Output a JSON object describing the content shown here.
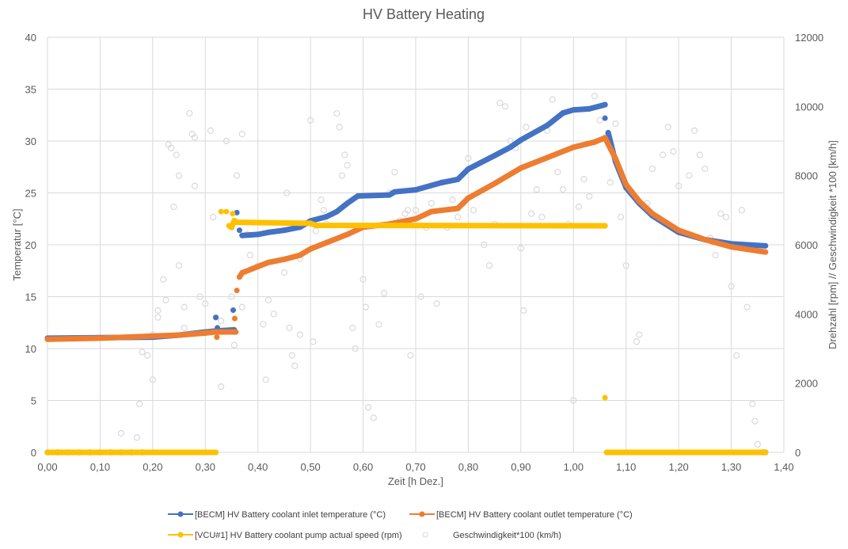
{
  "chart_data": {
    "type": "scatter",
    "title": "HV Battery Heating",
    "xlabel": "Zeit [h Dez.]",
    "ylabel": "Temperatur [°C]",
    "y2label": "Drehzahl [rpm] // Geschwindigkeit *100 [km/h]",
    "xlim": [
      0,
      1.4
    ],
    "ylim": [
      0,
      40
    ],
    "y2lim": [
      0,
      12000
    ],
    "grid": true,
    "legend_position": "bottom",
    "x_ticks": [
      "0,00",
      "0,10",
      "0,20",
      "0,30",
      "0,40",
      "0,50",
      "0,60",
      "0,70",
      "0,80",
      "0,90",
      "1,00",
      "1,10",
      "1,20",
      "1,30",
      "1,40"
    ],
    "y_ticks": [
      "0",
      "5",
      "10",
      "15",
      "20",
      "25",
      "30",
      "35",
      "40"
    ],
    "y2_ticks": [
      "0",
      "2000",
      "4000",
      "6000",
      "8000",
      "10000",
      "12000"
    ],
    "series": [
      {
        "name": "[BECM]  HV Battery coolant inlet temperature (°C)",
        "color": "#4472C4",
        "axis": "left",
        "style": "line-marker",
        "segments": [
          [
            [
              0,
              11.0
            ],
            [
              0.1,
              11.05
            ],
            [
              0.2,
              11.1
            ],
            [
              0.25,
              11.3
            ],
            [
              0.3,
              11.6
            ],
            [
              0.32,
              11.7
            ],
            [
              0.355,
              11.8
            ]
          ],
          [
            [
              0.37,
              20.9
            ],
            [
              0.4,
              21.0
            ],
            [
              0.42,
              21.2
            ],
            [
              0.45,
              21.4
            ],
            [
              0.48,
              21.7
            ],
            [
              0.5,
              22.3
            ],
            [
              0.53,
              22.7
            ],
            [
              0.55,
              23.2
            ],
            [
              0.57,
              24.0
            ],
            [
              0.59,
              24.7
            ],
            [
              0.65,
              24.8
            ],
            [
              0.66,
              25.1
            ],
            [
              0.7,
              25.3
            ],
            [
              0.75,
              26.0
            ],
            [
              0.78,
              26.3
            ],
            [
              0.8,
              27.3
            ],
            [
              0.85,
              28.6
            ],
            [
              0.88,
              29.4
            ],
            [
              0.9,
              30.1
            ],
            [
              0.95,
              31.5
            ],
            [
              0.98,
              32.7
            ],
            [
              1.0,
              33.0
            ],
            [
              1.03,
              33.1
            ],
            [
              1.06,
              33.5
            ]
          ],
          [
            [
              1.066,
              30.8
            ],
            [
              1.08,
              28.0
            ],
            [
              1.1,
              25.5
            ],
            [
              1.125,
              24.0
            ],
            [
              1.15,
              22.8
            ],
            [
              1.2,
              21.2
            ],
            [
              1.25,
              20.5
            ],
            [
              1.3,
              20.1
            ],
            [
              1.365,
              19.9
            ]
          ]
        ],
        "points": [
          [
            0.32,
            13.0
          ],
          [
            0.323,
            12.0
          ],
          [
            0.353,
            13.7
          ],
          [
            0.36,
            23.1
          ],
          [
            0.365,
            21.4
          ],
          [
            1.06,
            32.2
          ]
        ]
      },
      {
        "name": "[BECM]  HV Battery coolant outlet temperature (°C)",
        "color": "#ED7D31",
        "axis": "left",
        "style": "line-marker",
        "segments": [
          [
            [
              0,
              10.9
            ],
            [
              0.1,
              11.0
            ],
            [
              0.2,
              11.2
            ],
            [
              0.25,
              11.3
            ],
            [
              0.3,
              11.5
            ],
            [
              0.32,
              11.6
            ],
            [
              0.358,
              11.6
            ]
          ],
          [
            [
              0.365,
              16.9
            ],
            [
              0.37,
              17.3
            ],
            [
              0.4,
              17.9
            ],
            [
              0.42,
              18.3
            ],
            [
              0.45,
              18.6
            ],
            [
              0.48,
              19.0
            ],
            [
              0.5,
              19.6
            ],
            [
              0.53,
              20.2
            ],
            [
              0.57,
              21.0
            ],
            [
              0.6,
              21.7
            ],
            [
              0.65,
              22.0
            ],
            [
              0.7,
              22.5
            ],
            [
              0.73,
              23.2
            ],
            [
              0.78,
              23.5
            ],
            [
              0.8,
              24.5
            ],
            [
              0.85,
              25.9
            ],
            [
              0.9,
              27.4
            ],
            [
              0.95,
              28.4
            ],
            [
              1.0,
              29.4
            ],
            [
              1.04,
              29.9
            ],
            [
              1.06,
              30.3
            ],
            [
              1.08,
              28.3
            ],
            [
              1.1,
              25.8
            ],
            [
              1.125,
              24.2
            ],
            [
              1.15,
              23.0
            ],
            [
              1.2,
              21.4
            ],
            [
              1.25,
              20.5
            ],
            [
              1.3,
              19.8
            ],
            [
              1.365,
              19.3
            ]
          ]
        ],
        "points": [
          [
            0.322,
            11.1
          ],
          [
            0.356,
            12.9
          ],
          [
            0.36,
            15.6
          ]
        ]
      },
      {
        "name": "[VCU#1] HV Battery coolant pump actual speed (rpm)",
        "color": "#FFC000",
        "axis": "right",
        "style": "line-marker",
        "segments": [
          [
            [
              0,
              0
            ],
            [
              0.32,
              0
            ]
          ],
          [
            [
              0.345,
              6550
            ],
            [
              0.35,
              6500
            ],
            [
              0.355,
              6700
            ],
            [
              0.36,
              6650
            ],
            [
              0.5,
              6620
            ],
            [
              0.51,
              6560
            ],
            [
              1.06,
              6550
            ]
          ],
          [
            [
              1.063,
              0
            ],
            [
              1.365,
              0
            ]
          ]
        ],
        "points": [
          [
            0.33,
            6960
          ],
          [
            0.34,
            6960
          ],
          [
            0.352,
            6900
          ],
          [
            1.06,
            1580
          ]
        ]
      },
      {
        "name": "Geschwindigkeit*100 (km/h)",
        "color": "#D9D9D9",
        "axis": "right",
        "style": "hollow-marker",
        "segments": [],
        "points": [
          [
            0,
            0
          ],
          [
            0.02,
            0
          ],
          [
            0.04,
            0
          ],
          [
            0.06,
            0
          ],
          [
            0.08,
            0
          ],
          [
            0.1,
            0
          ],
          [
            0.12,
            0
          ],
          [
            0.14,
            0
          ],
          [
            0.16,
            0
          ],
          [
            0.18,
            0
          ],
          [
            0.14,
            550
          ],
          [
            0.17,
            430
          ],
          [
            0.175,
            1400
          ],
          [
            0.18,
            2900
          ],
          [
            0.19,
            2800
          ],
          [
            0.2,
            3400
          ],
          [
            0.2,
            2100
          ],
          [
            0.21,
            3900
          ],
          [
            0.21,
            4100
          ],
          [
            0.22,
            5000
          ],
          [
            0.225,
            4400
          ],
          [
            0.23,
            8900
          ],
          [
            0.235,
            8800
          ],
          [
            0.24,
            7100
          ],
          [
            0.245,
            8600
          ],
          [
            0.25,
            8000
          ],
          [
            0.25,
            5400
          ],
          [
            0.26,
            4200
          ],
          [
            0.26,
            3600
          ],
          [
            0.27,
            9800
          ],
          [
            0.275,
            9200
          ],
          [
            0.28,
            9100
          ],
          [
            0.28,
            7700
          ],
          [
            0.29,
            4500
          ],
          [
            0.3,
            4300
          ],
          [
            0.31,
            9300
          ],
          [
            0.315,
            6800
          ],
          [
            0.32,
            3900
          ],
          [
            0.33,
            3800
          ],
          [
            0.33,
            1900
          ],
          [
            0.34,
            9000
          ],
          [
            0.35,
            4500
          ],
          [
            0.355,
            3100
          ],
          [
            0.36,
            8000
          ],
          [
            0.37,
            4200
          ],
          [
            0.37,
            9200
          ],
          [
            0.38,
            6300
          ],
          [
            0.385,
            5700
          ],
          [
            0.4,
            5400
          ],
          [
            0.41,
            3700
          ],
          [
            0.415,
            2100
          ],
          [
            0.42,
            4400
          ],
          [
            0.43,
            4000
          ],
          [
            0.45,
            5200
          ],
          [
            0.455,
            7500
          ],
          [
            0.46,
            3600
          ],
          [
            0.465,
            2800
          ],
          [
            0.47,
            2500
          ],
          [
            0.48,
            3400
          ],
          [
            0.48,
            5600
          ],
          [
            0.49,
            6600
          ],
          [
            0.5,
            9600
          ],
          [
            0.505,
            3200
          ],
          [
            0.51,
            6400
          ],
          [
            0.52,
            7300
          ],
          [
            0.525,
            7000
          ],
          [
            0.53,
            6600
          ],
          [
            0.55,
            9800
          ],
          [
            0.555,
            9400
          ],
          [
            0.56,
            8000
          ],
          [
            0.565,
            8600
          ],
          [
            0.57,
            8300
          ],
          [
            0.58,
            3600
          ],
          [
            0.585,
            3000
          ],
          [
            0.6,
            5000
          ],
          [
            0.605,
            4200
          ],
          [
            0.61,
            1300
          ],
          [
            0.62,
            1000
          ],
          [
            0.63,
            3700
          ],
          [
            0.64,
            4600
          ],
          [
            0.65,
            7500
          ],
          [
            0.66,
            8100
          ],
          [
            0.67,
            6700
          ],
          [
            0.68,
            6900
          ],
          [
            0.685,
            7000
          ],
          [
            0.69,
            2800
          ],
          [
            0.7,
            7000
          ],
          [
            0.71,
            4500
          ],
          [
            0.72,
            6500
          ],
          [
            0.73,
            7200
          ],
          [
            0.74,
            4300
          ],
          [
            0.75,
            7800
          ],
          [
            0.76,
            6500
          ],
          [
            0.77,
            7300
          ],
          [
            0.78,
            6800
          ],
          [
            0.79,
            7200
          ],
          [
            0.8,
            8500
          ],
          [
            0.81,
            7000
          ],
          [
            0.83,
            6000
          ],
          [
            0.84,
            5400
          ],
          [
            0.85,
            6600
          ],
          [
            0.86,
            10100
          ],
          [
            0.87,
            10000
          ],
          [
            0.88,
            9000
          ],
          [
            0.89,
            8800
          ],
          [
            0.9,
            5900
          ],
          [
            0.905,
            4100
          ],
          [
            0.91,
            9400
          ],
          [
            0.92,
            6900
          ],
          [
            0.93,
            7600
          ],
          [
            0.94,
            6800
          ],
          [
            0.95,
            9300
          ],
          [
            0.96,
            10200
          ],
          [
            0.97,
            8100
          ],
          [
            0.98,
            7600
          ],
          [
            0.99,
            6600
          ],
          [
            1.0,
            1500
          ],
          [
            1.01,
            7100
          ],
          [
            1.02,
            7900
          ],
          [
            1.03,
            7400
          ],
          [
            1.04,
            10300
          ],
          [
            1.05,
            9600
          ],
          [
            1.06,
            9100
          ],
          [
            1.07,
            7800
          ],
          [
            1.08,
            9500
          ],
          [
            1.09,
            6800
          ],
          [
            1.1,
            5400
          ],
          [
            1.12,
            3200
          ],
          [
            1.125,
            3400
          ],
          [
            1.14,
            7200
          ],
          [
            1.15,
            8200
          ],
          [
            1.17,
            8600
          ],
          [
            1.18,
            9400
          ],
          [
            1.19,
            8700
          ],
          [
            1.2,
            7700
          ],
          [
            1.22,
            8000
          ],
          [
            1.23,
            9300
          ],
          [
            1.24,
            8600
          ],
          [
            1.25,
            8200
          ],
          [
            1.26,
            6200
          ],
          [
            1.27,
            5700
          ],
          [
            1.28,
            6900
          ],
          [
            1.29,
            6800
          ],
          [
            1.3,
            4800
          ],
          [
            1.31,
            2800
          ],
          [
            1.32,
            7000
          ],
          [
            1.33,
            4200
          ],
          [
            1.34,
            1400
          ],
          [
            1.345,
            900
          ],
          [
            1.35,
            230
          ],
          [
            1.36,
            0
          ],
          [
            1.365,
            0
          ]
        ]
      }
    ]
  }
}
